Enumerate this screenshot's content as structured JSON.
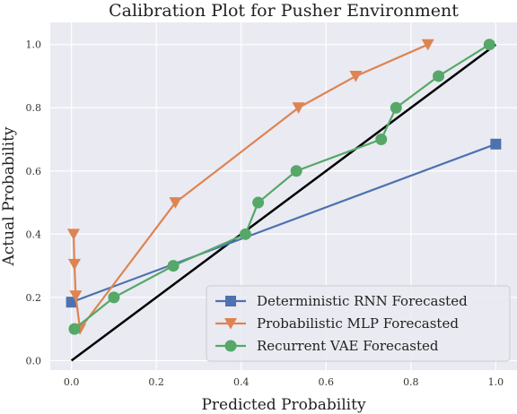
{
  "chart_data": {
    "type": "line",
    "title": "Calibration Plot for Pusher Environment",
    "xlabel": "Predicted Probability",
    "ylabel": "Actual Probability",
    "xlim": [
      -0.05,
      1.05
    ],
    "ylim": [
      -0.03,
      1.07
    ],
    "x_ticks": [
      "0.0",
      "0.2",
      "0.4",
      "0.6",
      "0.8",
      "1.0"
    ],
    "y_ticks": [
      "0.0",
      "0.2",
      "0.4",
      "0.6",
      "0.8",
      "1.0"
    ],
    "grid": true,
    "legend_position": "bottom-right",
    "reference_line": {
      "x": [
        0,
        1
      ],
      "y": [
        0,
        1
      ],
      "color": "#000000"
    },
    "series": [
      {
        "name": "Deterministic RNN Forecasted",
        "color": "#4c72b0",
        "marker": "square",
        "x": [
          0.0,
          1.0
        ],
        "y": [
          0.185,
          0.685
        ]
      },
      {
        "name": "Probabilistic MLP Forecasted",
        "color": "#dd8452",
        "marker": "triangle-down",
        "x": [
          0.005,
          0.007,
          0.01,
          0.02,
          0.245,
          0.535,
          0.67,
          0.84
        ],
        "y": [
          0.4,
          0.305,
          0.205,
          0.1,
          0.5,
          0.8,
          0.9,
          1.0
        ]
      },
      {
        "name": "Recurrent VAE Forecasted",
        "color": "#55a868",
        "marker": "circle",
        "x": [
          0.007,
          0.1,
          0.24,
          0.41,
          0.44,
          0.53,
          0.73,
          0.765,
          0.865,
          0.985
        ],
        "y": [
          0.1,
          0.2,
          0.3,
          0.4,
          0.5,
          0.6,
          0.7,
          0.8,
          0.9,
          1.0
        ]
      }
    ]
  }
}
